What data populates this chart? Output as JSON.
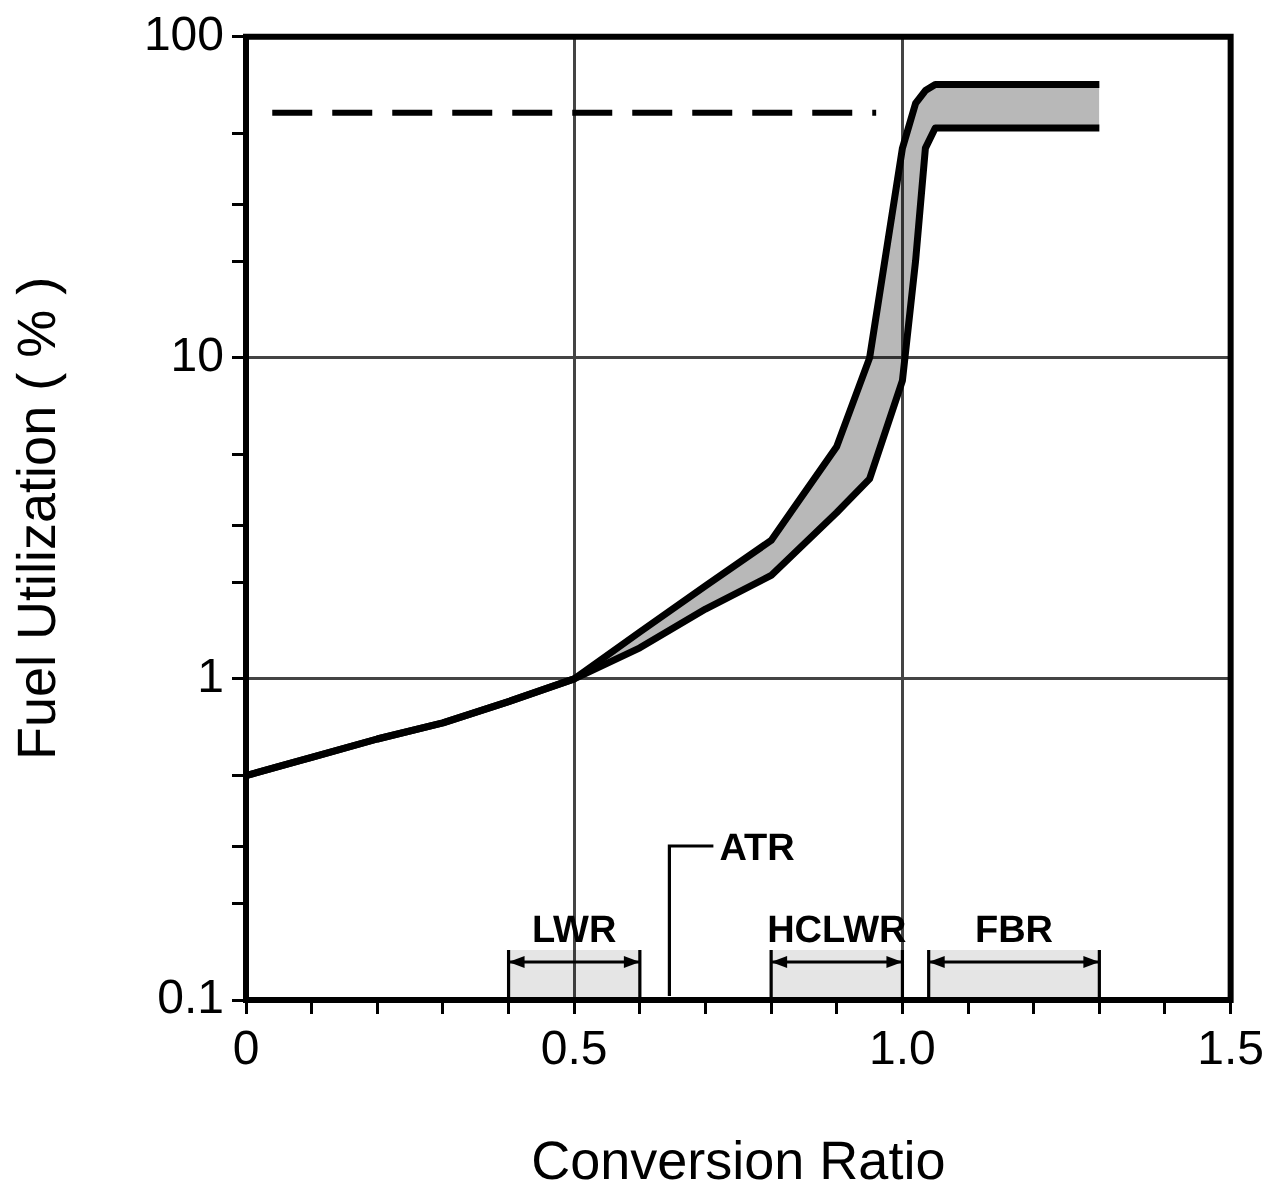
{
  "chart_data": {
    "type": "line",
    "xlabel": "Conversion Ratio",
    "ylabel": "Fuel Utilization ( % )",
    "xlim": [
      0,
      1.5
    ],
    "xticks": [
      0,
      {
        "value": 0.1,
        "label": null
      },
      {
        "value": 0.2,
        "label": null
      },
      {
        "value": 0.3,
        "label": null
      },
      {
        "value": 0.4,
        "label": null
      },
      0.5,
      {
        "value": 0.6,
        "label": null
      },
      {
        "value": 0.7,
        "label": null
      },
      {
        "value": 0.8,
        "label": null
      },
      {
        "value": 0.9,
        "label": null
      },
      {
        "value": 1.0,
        "label": "1.0"
      },
      {
        "value": 1.1,
        "label": null
      },
      {
        "value": 1.2,
        "label": null
      },
      {
        "value": 1.3,
        "label": null
      },
      {
        "value": 1.4,
        "label": null
      },
      1.5
    ],
    "ylim": [
      0.1,
      100
    ],
    "yticks": [
      0.1,
      {
        "value": 0.2,
        "label": null
      },
      {
        "value": 0.3,
        "label": null
      },
      {
        "value": 0.5,
        "label": null
      },
      1,
      {
        "value": 2,
        "label": null
      },
      {
        "value": 3,
        "label": null
      },
      {
        "value": 5,
        "label": null
      },
      10,
      {
        "value": 20,
        "label": null
      },
      {
        "value": 30,
        "label": null
      },
      {
        "value": 50,
        "label": null
      },
      100
    ],
    "log": "y",
    "grid": true,
    "legend": false,
    "marker": "none",
    "series": [
      {
        "color": "#000000",
        "x": [
          0,
          0.1,
          0.2,
          0.3,
          0.4,
          0.5,
          0.6,
          0.7,
          0.8,
          0.9,
          0.95,
          1.0,
          1.02,
          1.035,
          1.05,
          1.07,
          1.3
        ],
        "values": [
          0.5,
          0.57,
          0.65,
          0.73,
          0.85,
          1.0,
          1.4,
          1.95,
          2.7,
          5.3,
          10,
          45,
          62,
          68,
          71,
          71,
          71
        ],
        "upper": [
          0.5,
          0.57,
          0.65,
          0.73,
          0.85,
          1.0,
          1.4,
          1.95,
          2.7,
          5.3,
          10,
          45,
          62,
          68,
          71,
          71,
          71
        ],
        "lower": [
          0.5,
          0.57,
          0.65,
          0.73,
          0.85,
          1.0,
          1.25,
          1.65,
          2.1,
          3.3,
          4.2,
          8.5,
          20,
          45,
          52,
          52,
          52
        ]
      },
      {
        "color": "#000000",
        "x": [
          0,
          0.1,
          0.2,
          0.3,
          0.4,
          0.5,
          0.6,
          0.7,
          0.8,
          0.9,
          0.95,
          1.0,
          1.02,
          1.035,
          1.05,
          1.07,
          1.3
        ],
        "values": [
          0.5,
          0.57,
          0.65,
          0.73,
          0.85,
          1.0,
          1.25,
          1.65,
          2.1,
          3.3,
          4.2,
          8.5,
          20,
          45,
          52,
          52,
          52
        ]
      },
      {
        "color": "#000000",
        "line_style": "dashed",
        "x": [
          0.04,
          0.96
        ],
        "values": [
          58,
          58
        ]
      }
    ],
    "ref_lines": [
      {
        "axis": "x",
        "value": 0.645,
        "label": "ATR"
      }
    ],
    "bands": [
      {
        "axis": "x",
        "from": 0.4,
        "to": 0.6,
        "label": "LWR"
      },
      {
        "axis": "x",
        "from": 0.8,
        "to": 1.0,
        "label": "HCLWR"
      },
      {
        "axis": "x",
        "from": 1.04,
        "to": 1.3,
        "label": "FBR"
      }
    ]
  }
}
